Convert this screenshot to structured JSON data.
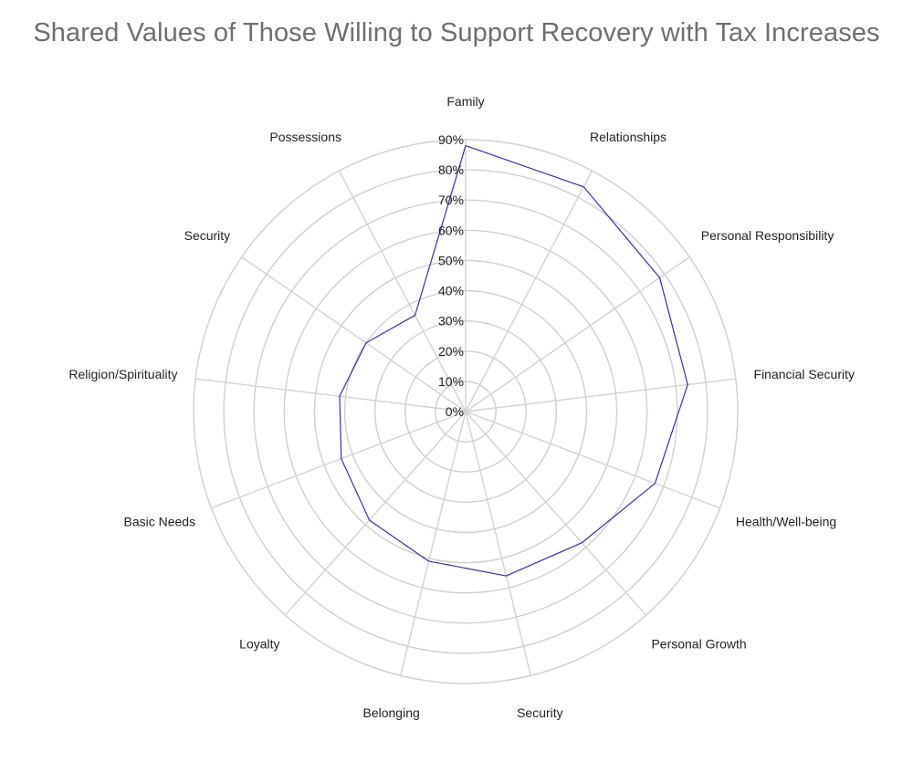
{
  "chart_data": {
    "type": "radar",
    "title": "Shared Values of Those Willing to Support Recovery with Tax Increases",
    "categories": [
      "Family",
      "Relationships",
      "Personal Responsibility",
      "Financial Security",
      "Health/Well-being",
      "Personal Growth",
      "Security",
      "Belonging",
      "Loyalty",
      "Basic Needs",
      "Religion/Spirituality",
      "Security",
      "Possessions"
    ],
    "series": [
      {
        "values": [
          88,
          84,
          78,
          74,
          67,
          58,
          56,
          51,
          48,
          44,
          42,
          40,
          36
        ]
      }
    ],
    "rlim": [
      0,
      90
    ],
    "ticks": [
      "0%",
      "10%",
      "20%",
      "30%",
      "40%",
      "50%",
      "60%",
      "70%",
      "80%",
      "90%"
    ],
    "grid": true,
    "colors": {
      "series": "#3333b0",
      "grid": "#cfcfcf",
      "title": "#6f6f6f"
    }
  }
}
